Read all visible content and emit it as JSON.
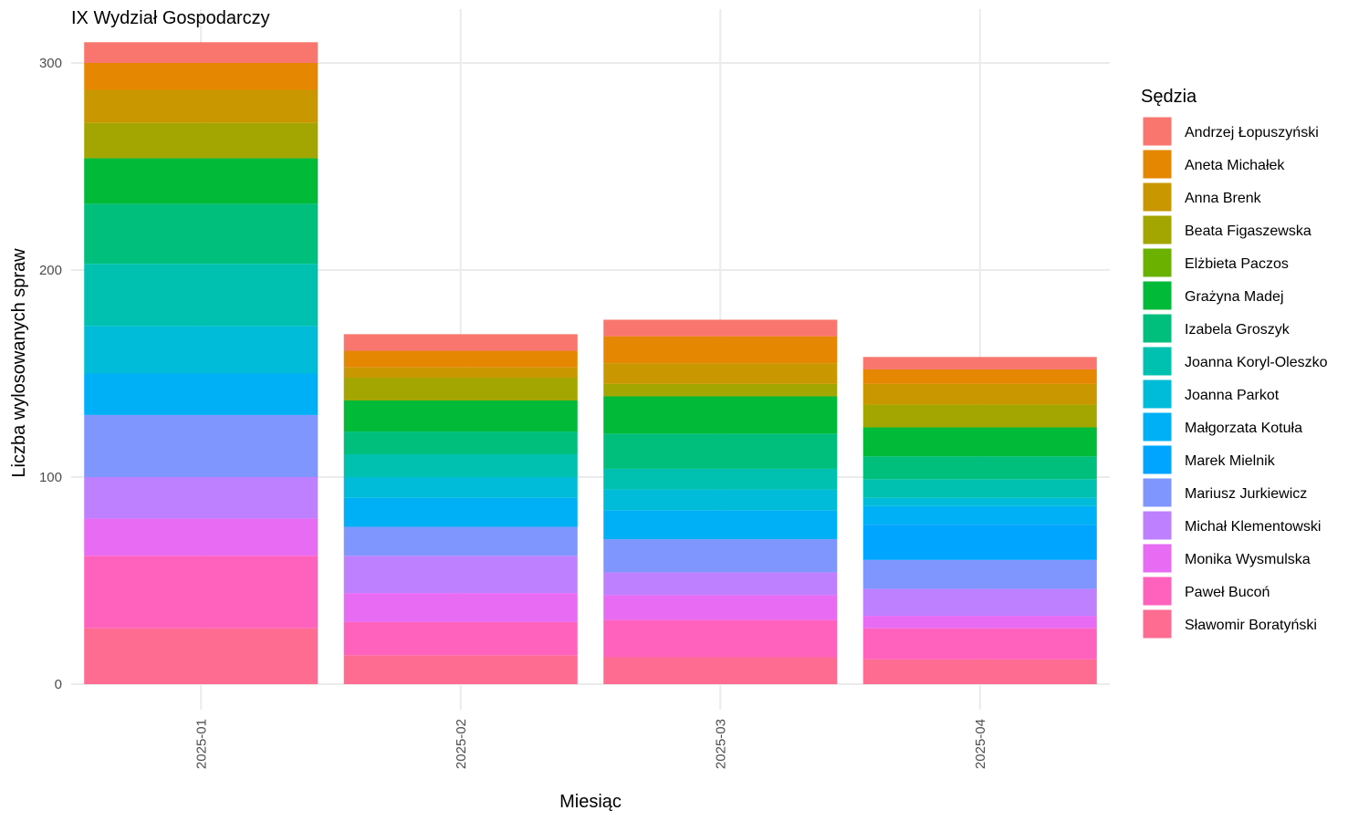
{
  "chart_data": {
    "type": "bar",
    "stacked": true,
    "title": "IX Wydział Gospodarczy",
    "xlabel": "Miesiąc",
    "ylabel": "Liczba wylosowanych spraw",
    "categories": [
      "2025-01",
      "2025-02",
      "2025-03",
      "2025-04"
    ],
    "y_ticks": [
      0,
      100,
      200,
      300
    ],
    "ylim": [
      0,
      310
    ],
    "grid": true,
    "legend_title": "Sędzia",
    "legend_position": "right",
    "series": [
      {
        "name": "Andrzej Łopuszyński",
        "color": "#F8766D",
        "values": [
          10,
          8,
          8,
          6
        ]
      },
      {
        "name": "Aneta Michałek",
        "color": "#E58700",
        "values": [
          13,
          8,
          13,
          7
        ]
      },
      {
        "name": "Anna Brenk",
        "color": "#C99800",
        "values": [
          16,
          5,
          10,
          10
        ]
      },
      {
        "name": "Beata Figaszewska",
        "color": "#A3A500",
        "values": [
          17,
          11,
          6,
          11
        ]
      },
      {
        "name": "Elżbieta Paczos",
        "color": "#6BB100",
        "values": [
          0,
          0,
          0,
          0
        ]
      },
      {
        "name": "Grażyna Madej",
        "color": "#00BA38",
        "values": [
          22,
          15,
          18,
          14
        ]
      },
      {
        "name": "Izabela Groszyk",
        "color": "#00BF7D",
        "values": [
          29,
          11,
          17,
          11
        ]
      },
      {
        "name": "Joanna Koryl-Oleszko",
        "color": "#00C0AF",
        "values": [
          30,
          11,
          10,
          9
        ]
      },
      {
        "name": "Joanna Parkot",
        "color": "#00BCD8",
        "values": [
          23,
          10,
          10,
          4
        ]
      },
      {
        "name": "Małgorzata Kotuła",
        "color": "#00B0F6",
        "values": [
          20,
          14,
          14,
          9
        ]
      },
      {
        "name": "Marek Mielnik",
        "color": "#00A5FF",
        "values": [
          0,
          0,
          0,
          17
        ]
      },
      {
        "name": "Mariusz Jurkiewicz",
        "color": "#7F96FF",
        "values": [
          30,
          14,
          16,
          14
        ]
      },
      {
        "name": "Michał Klementowski",
        "color": "#BF80FF",
        "values": [
          20,
          18,
          11,
          13
        ]
      },
      {
        "name": "Monika Wysmulska",
        "color": "#E76BF3",
        "values": [
          18,
          14,
          12,
          6
        ]
      },
      {
        "name": "Paweł Bucoń",
        "color": "#FF62BC",
        "values": [
          35,
          16,
          18,
          15
        ]
      },
      {
        "name": "Sławomir Boratyński",
        "color": "#FF6C91",
        "values": [
          27,
          14,
          13,
          12
        ]
      }
    ]
  }
}
